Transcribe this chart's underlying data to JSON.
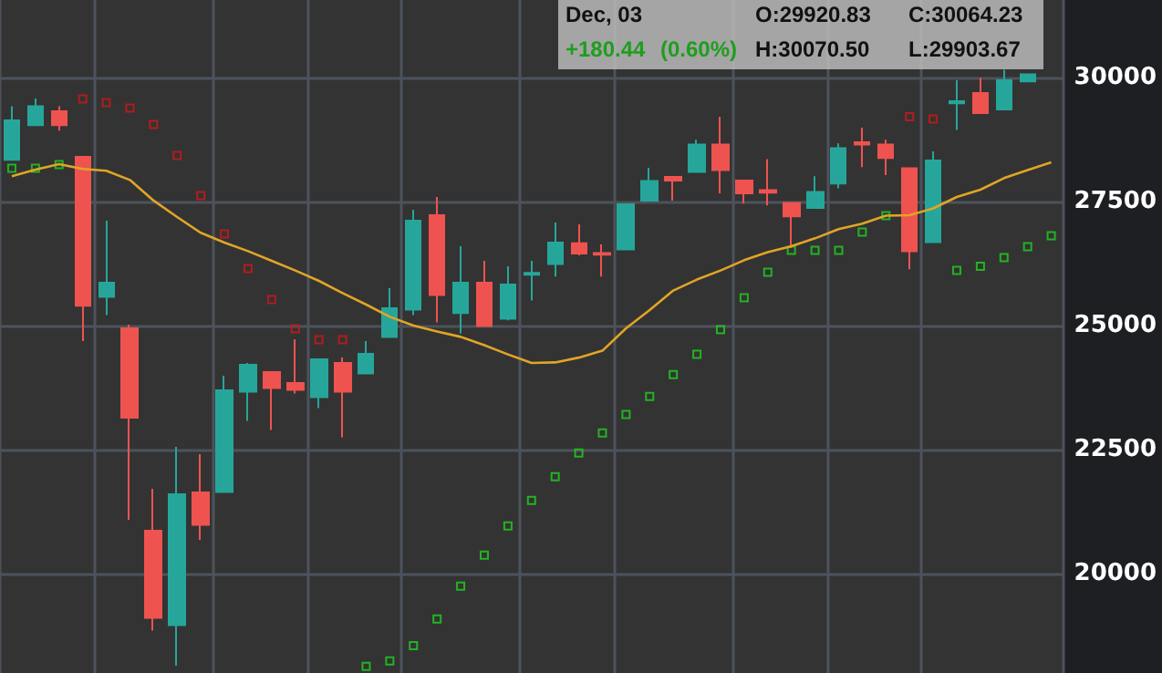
{
  "chart_data": {
    "type": "candlestick",
    "categories": [
      null,
      null,
      null,
      null,
      null,
      null,
      null,
      null,
      null,
      null,
      null,
      null,
      null,
      null,
      null,
      null,
      null,
      null,
      null,
      null,
      null,
      null,
      null,
      null,
      null,
      null,
      null,
      null,
      null,
      null,
      null,
      null,
      null,
      null,
      null,
      null,
      null,
      null,
      null,
      null,
      null,
      null,
      null,
      null,
      null
    ],
    "ohlc": [
      [
        28338,
        29419,
        28338,
        29136
      ],
      [
        29037,
        29577,
        29037,
        29419
      ],
      [
        29320,
        29419,
        28927,
        29037
      ],
      [
        28401,
        28401,
        24688,
        25398
      ],
      [
        25581,
        27114,
        25214,
        25864
      ],
      [
        24945,
        25019,
        21086,
        23144
      ],
      [
        20865,
        21710,
        18854,
        19112
      ],
      [
        18965,
        22556,
        18145,
        21600
      ],
      [
        21637,
        22409,
        20681,
        20987
      ],
      [
        21648,
        23990,
        21648,
        23696
      ],
      [
        23670,
        24247,
        23082,
        24210
      ],
      [
        24063,
        24063,
        22898,
        23743
      ],
      [
        23843,
        24725,
        23633,
        23707
      ],
      [
        23560,
        24320,
        23339,
        24320
      ],
      [
        24247,
        24357,
        22751,
        23670
      ],
      [
        24037,
        24688,
        24037,
        24431
      ],
      [
        24773,
        25754,
        24773,
        25350
      ],
      [
        25324,
        27335,
        25214,
        27114
      ],
      [
        27225,
        27592,
        25067,
        25618
      ],
      [
        25251,
        26600,
        24846,
        25864
      ],
      [
        25864,
        26306,
        24993,
        24993
      ],
      [
        25140,
        26195,
        25104,
        25828
      ],
      [
        26023,
        26306,
        25508,
        26060
      ],
      [
        26243,
        27077,
        25986,
        26673
      ],
      [
        26661,
        27041,
        26416,
        26453
      ],
      [
        26460,
        26636,
        25986,
        26430
      ],
      [
        26537,
        27445,
        26537,
        27445
      ],
      [
        27519,
        28180,
        27519,
        27912
      ],
      [
        27997,
        28000,
        27519,
        27923
      ],
      [
        28096,
        28743,
        28096,
        28647
      ],
      [
        28647,
        29210,
        27666,
        28133
      ],
      [
        27923,
        27934,
        27456,
        27666
      ],
      [
        27728,
        28353,
        27420,
        27677
      ],
      [
        27471,
        27471,
        26563,
        27199
      ],
      [
        27372,
        28008,
        27372,
        27692
      ],
      [
        27861,
        28669,
        27765,
        28574
      ],
      [
        28695,
        28989,
        28191,
        28647
      ],
      [
        28647,
        28743,
        28033,
        28375
      ],
      [
        28169,
        28169,
        26133,
        26500
      ],
      [
        26684,
        28511,
        26684,
        28327
      ],
      [
        29478,
        29945,
        28941,
        29520
      ],
      [
        29688,
        29993,
        29283,
        29283
      ],
      [
        29357,
        30154,
        29357,
        29945
      ],
      [
        29920.83,
        30070.5,
        29903.67,
        30064.23
      ],
      null
    ],
    "colors": [
      "#26a69a",
      "#26a69a",
      "#ef5350",
      "#ef5350",
      "#26a69a",
      "#ef5350",
      "#ef5350",
      "#26a69a",
      "#ef5350",
      "#26a69a",
      "#26a69a",
      "#ef5350",
      "#ef5350",
      "#26a69a",
      "#ef5350",
      "#26a69a",
      "#26a69a",
      "#26a69a",
      "#ef5350",
      "#26a69a",
      "#ef5350",
      "#26a69a",
      "#26a69a",
      "#26a69a",
      "#ef5350",
      "#ef5350",
      "#26a69a",
      "#26a69a",
      "#ef5350",
      "#26a69a",
      "#ef5350",
      "#ef5350",
      "#ef5350",
      "#ef5350",
      "#26a69a",
      "#26a69a",
      "#ef5350",
      "#ef5350",
      "#ef5350",
      "#26a69a",
      "#26a69a",
      "#ef5350",
      "#26a69a",
      "#26a69a",
      null
    ],
    "series": [
      {
        "type": "line",
        "color": "#e0a526",
        "values": [
          28008,
          28144,
          28254,
          28155,
          28120,
          27934,
          27519,
          27188,
          26869,
          26673,
          26500,
          26306,
          26110,
          25901,
          25655,
          25423,
          25177,
          25000,
          24883,
          24773,
          24604,
          24420,
          24247,
          24258,
          24355,
          24493,
          24945,
          25313,
          25706,
          25927,
          26110,
          26317,
          26478,
          26600,
          26758,
          26942,
          27052,
          27214,
          27225,
          27361,
          27592,
          27739,
          27971,
          28133,
          28290
        ]
      },
      {
        "type": "scatter",
        "marker": "square",
        "color": "#1fd21f",
        "values": [
          28169,
          28169,
          28243,
          null,
          null,
          null,
          null,
          null,
          null,
          null,
          null,
          null,
          null,
          null,
          null,
          18133,
          18243,
          18549,
          19088,
          19751,
          20376,
          20964,
          21479,
          21957,
          22435,
          22839,
          23207,
          23574,
          24015,
          24420,
          24920,
          25560,
          26074,
          26515,
          26515,
          26515,
          26883,
          27214,
          null,
          null,
          26110,
          26195,
          26368,
          26589,
          26809
        ]
      },
      {
        "type": "scatter",
        "marker": "square",
        "color": "#d01818",
        "values": [
          null,
          null,
          null,
          29566,
          29493,
          29382,
          29052,
          28427,
          27618,
          26846,
          26147,
          25523,
          24934,
          24714,
          24714,
          null,
          null,
          null,
          null,
          null,
          null,
          null,
          null,
          null,
          null,
          null,
          null,
          null,
          null,
          null,
          null,
          null,
          null,
          null,
          null,
          null,
          null,
          null,
          29210,
          29162,
          null,
          null,
          null,
          null,
          null
        ]
      }
    ],
    "ylim": [
      18000,
      31560
    ],
    "yticks": [
      20000,
      22500,
      25000,
      27500,
      30000
    ],
    "grid": true,
    "tick_labels": "y",
    "annotations": [
      "Dec, 03",
      "O:29920.83",
      "C:30064.23",
      "+180.44",
      "(0.60%)",
      "H:30070.50",
      "L:29903.67"
    ]
  }
}
